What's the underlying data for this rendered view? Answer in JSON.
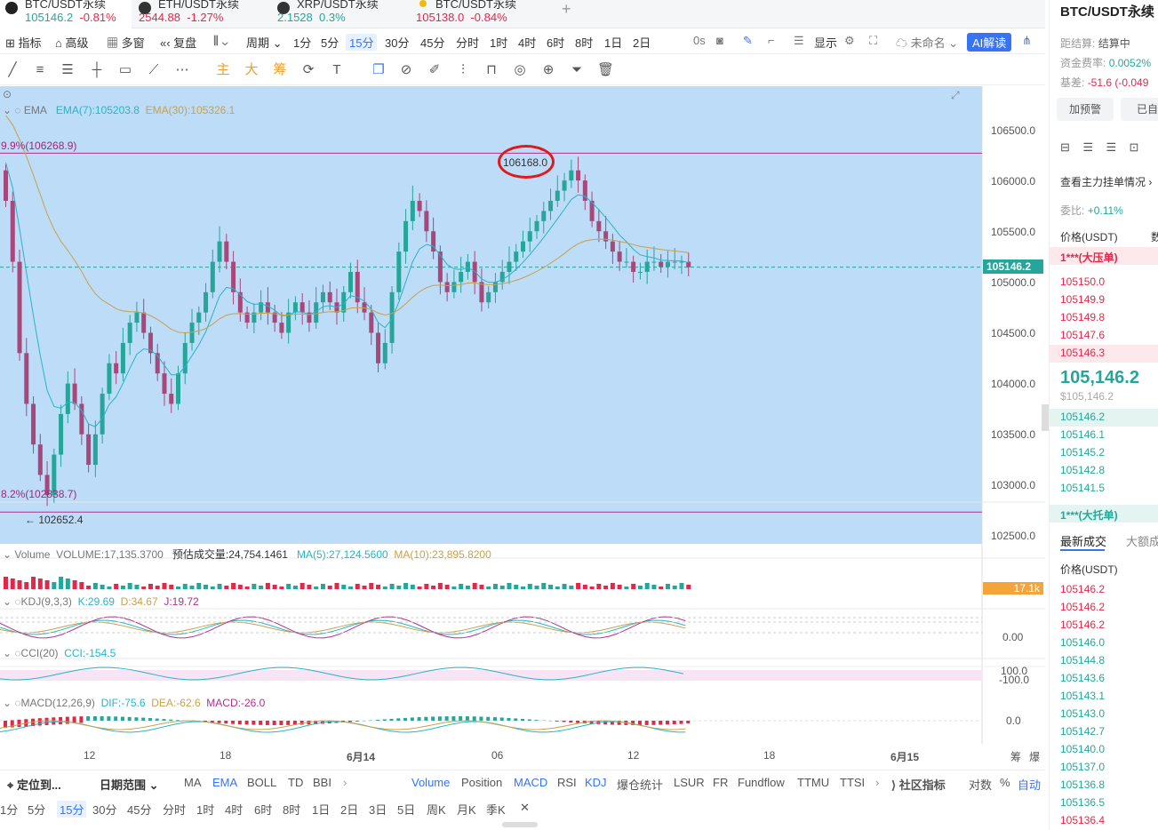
{
  "tabs": [
    {
      "symbol": "BTC/USDT永续",
      "price": "105146.2",
      "change": "-0.81%",
      "price_dir": "up",
      "change_dir": "dn",
      "icon": "btc-icon"
    },
    {
      "symbol": "ETH/USDT永续",
      "price": "2544.88",
      "change": "-1.27%",
      "price_dir": "dn",
      "change_dir": "dn",
      "icon": "eth-icon"
    },
    {
      "symbol": "XRP/USDT永续",
      "price": "2.1528",
      "change": "0.3%",
      "price_dir": "up",
      "change_dir": "up",
      "icon": "xrp-icon"
    },
    {
      "symbol": "BTC/USDT永续",
      "price": "105138.0",
      "change": "-0.84%",
      "price_dir": "dn",
      "change_dir": "dn",
      "icon": "btc-icon"
    }
  ],
  "add_tab": "+",
  "toolbar": {
    "indicators": "指标",
    "advanced": "高级",
    "multi": "多窗",
    "replay": "复盘",
    "period": "周期",
    "intervals": [
      "1分",
      "5分",
      "15分",
      "30分",
      "45分",
      "分时",
      "1时",
      "4时",
      "6时",
      "8时",
      "1日",
      "2日"
    ],
    "selected_interval": "15分",
    "seconds": "0s",
    "display": "显示",
    "unnamed": "未命名",
    "ai": "AI解读"
  },
  "drawbar": {
    "zhu": "主",
    "da": "大",
    "chou": "筹"
  },
  "chart": {
    "ema_legend": {
      "name": "EMA",
      "ema7": "EMA(7):105203.8",
      "ema30": "EMA(30):105326.1"
    },
    "fib_top": "9.9%(106268.9)",
    "fib_bottom": "8.2%(102838.7)",
    "high_label": "106168.0",
    "low_label": "← 102652.4",
    "current_price": "105146.2",
    "y_ticks": [
      "106500.0",
      "106000.0",
      "105500.0",
      "105000.0",
      "104500.0",
      "104000.0",
      "103500.0",
      "103000.0",
      "102500.0"
    ],
    "volume_legend": {
      "name": "Volume",
      "volume": "VOLUME:17,135.3700",
      "forecast": "预估成交量:24,754.1461",
      "ma5": "MA(5):27,124.5600",
      "ma10": "MA(10):23,895.8200"
    },
    "volume_badge": "17.1k",
    "kdj_legend": {
      "name": "KDJ(9,3,3)",
      "k": "K:29.69",
      "d": "D:34.67",
      "j": "J:19.72"
    },
    "kdj_tick": "0.00",
    "cci_legend": {
      "name": "CCI(20)",
      "cci": "CCI:-154.5"
    },
    "cci_ticks": [
      "100.0",
      "-100.0"
    ],
    "macd_legend": {
      "name": "MACD(12,26,9)",
      "dif": "DIF:-75.6",
      "dea": "DEA:-62.6",
      "macd": "MACD:-26.0"
    },
    "macd_tick": "0.0",
    "x_ticks": [
      "12",
      "18",
      "6月14",
      "06",
      "12",
      "18",
      "6月15"
    ],
    "x_right": [
      "筹",
      "爆"
    ],
    "colors": {
      "up": "#26a69a",
      "down": "#a8487a",
      "ema7": "#26b5c6",
      "ema30": "#c8a24a",
      "bg": "#bcdcf8",
      "fib": "#b0308a"
    }
  },
  "chart_data": {
    "type": "candlestick",
    "title": "BTC/USDT永续 15分",
    "ylim": [
      102400,
      106700
    ],
    "close": [
      105800,
      105200,
      104300,
      103800,
      103400,
      103100,
      102900,
      103300,
      103700,
      104000,
      103800,
      103500,
      103200,
      103500,
      103900,
      104200,
      104100,
      104400,
      104600,
      104700,
      104500,
      104300,
      104100,
      103900,
      103800,
      104100,
      104400,
      104600,
      104700,
      104900,
      105200,
      105400,
      105200,
      104900,
      104700,
      104600,
      104700,
      104800,
      104700,
      104600,
      104500,
      104700,
      104800,
      104700,
      104600,
      104800,
      104900,
      104800,
      104700,
      104900,
      105100,
      104800,
      104700,
      104500,
      104200,
      104400,
      104900,
      105300,
      105600,
      105800,
      105700,
      105500,
      105300,
      105000,
      104900,
      105000,
      105100,
      105200,
      105000,
      104800,
      104900,
      105000,
      105100,
      105200,
      105300,
      105400,
      105500,
      105600,
      105700,
      105800,
      105900,
      106000,
      106100,
      106000,
      105800,
      105600,
      105500,
      105400,
      105300,
      105200,
      105200,
      105100,
      105100,
      105200,
      105200,
      105150,
      105200,
      105200,
      105200,
      105146
    ],
    "ema7_last": 105203.8,
    "ema30_last": 105326.1,
    "high": 106168.0,
    "low": 102652.4,
    "fib_levels": [
      106268.9,
      102838.7
    ],
    "current": 105146.2,
    "indicators": {
      "volume": 17135.37,
      "kdj": {
        "k": 29.69,
        "d": 34.67,
        "j": 19.72
      },
      "cci": -154.5,
      "macd": {
        "dif": -75.6,
        "dea": -62.6,
        "macd": -26.0
      }
    }
  },
  "right": {
    "title": "BTC/USDT永续",
    "countdown_label": "距结算:",
    "countdown_val": "结算中",
    "funding_label": "资金费率:",
    "funding_val": "0.0052%",
    "basis_label": "基差:",
    "basis_val": "-51.6 (-0.049",
    "alert_btn": "加预警",
    "done_btn": "已自",
    "depth_link": "查看主力挂单情况",
    "ratio_label": "委比:",
    "ratio_val": "+0.11%",
    "price_header": "价格(USDT)",
    "num_header": "数",
    "big_ask": "1***(大压单)",
    "asks": [
      "105150.0",
      "105149.9",
      "105149.8",
      "105147.6",
      "105146.3"
    ],
    "last_price": "105,146.2",
    "last_usd": "$105,146.2",
    "bids": [
      "105146.2",
      "105146.1",
      "105145.2",
      "105142.8",
      "105141.5"
    ],
    "big_bid": "1***(大托单)",
    "trades_tab": "最新成交",
    "big_trades_tab": "大额成",
    "trades_header": "价格(USDT)",
    "trades": [
      {
        "p": "105146.2",
        "d": "dn"
      },
      {
        "p": "105146.2",
        "d": "dn"
      },
      {
        "p": "105146.2",
        "d": "dn"
      },
      {
        "p": "105146.0",
        "d": "up"
      },
      {
        "p": "105144.8",
        "d": "up"
      },
      {
        "p": "105143.6",
        "d": "up"
      },
      {
        "p": "105143.1",
        "d": "up"
      },
      {
        "p": "105143.0",
        "d": "up"
      },
      {
        "p": "105142.7",
        "d": "up"
      },
      {
        "p": "105140.0",
        "d": "up"
      },
      {
        "p": "105137.0",
        "d": "up"
      },
      {
        "p": "105136.8",
        "d": "up"
      },
      {
        "p": "105136.5",
        "d": "up"
      },
      {
        "p": "105136.4",
        "d": "dn"
      }
    ]
  },
  "bottom": {
    "locate": "定位到...",
    "date_range": "日期范围",
    "main_ind": [
      "MA",
      "EMA",
      "BOLL",
      "TD",
      "BBI"
    ],
    "sub_ind": [
      "Volume",
      "Position",
      "MACD",
      "RSI",
      "KDJ",
      "爆仓统计",
      "LSUR",
      "FR",
      "Fundflow",
      "TTMU",
      "TTSI"
    ],
    "community": "社区指标",
    "log": "对数",
    "pct": "%",
    "auto": "自动",
    "ranges": [
      "1分",
      "5分",
      "15分",
      "30分",
      "45分",
      "分时",
      "1时",
      "4时",
      "6时",
      "8时",
      "1日",
      "2日",
      "3日",
      "5日",
      "周K",
      "月K",
      "季K"
    ],
    "selected_range": "15分",
    "close": "✕"
  }
}
